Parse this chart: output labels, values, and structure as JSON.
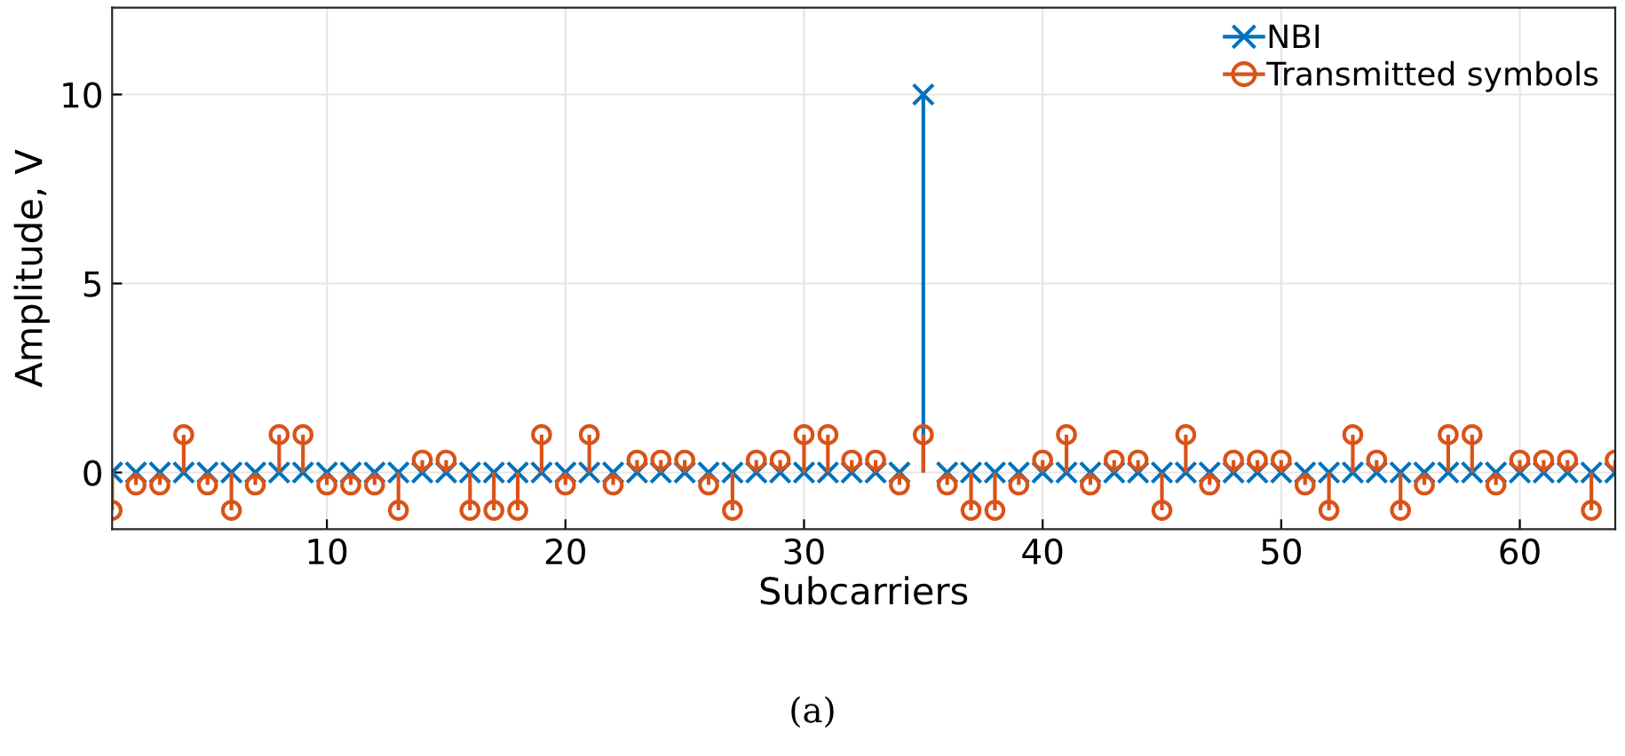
{
  "chart_data": {
    "type": "lollipop",
    "xlabel": "Subcarriers",
    "ylabel": "Amplitude, V",
    "x": [
      1,
      2,
      3,
      4,
      5,
      6,
      7,
      8,
      9,
      10,
      11,
      12,
      13,
      14,
      15,
      16,
      17,
      18,
      19,
      20,
      21,
      22,
      23,
      24,
      25,
      26,
      27,
      28,
      29,
      30,
      31,
      32,
      33,
      34,
      35,
      36,
      37,
      38,
      39,
      40,
      41,
      42,
      43,
      44,
      45,
      46,
      47,
      48,
      49,
      50,
      51,
      52,
      53,
      54,
      55,
      56,
      57,
      58,
      59,
      60,
      61,
      62,
      63,
      64
    ],
    "series": [
      {
        "name": "NBI",
        "color": "#0072bd",
        "marker": "cross",
        "values": [
          0,
          0,
          0,
          0,
          0,
          0,
          0,
          0,
          0,
          0,
          0,
          0,
          0,
          0,
          0,
          0,
          0,
          0,
          0,
          0,
          0,
          0,
          0,
          0,
          0,
          0,
          0,
          0,
          0,
          0,
          0,
          0,
          0,
          0,
          10,
          0,
          0,
          0,
          0,
          0,
          0,
          0,
          0,
          0,
          0,
          0,
          0,
          0,
          0,
          0,
          0,
          0,
          0,
          0,
          0,
          0,
          0,
          0,
          0,
          0,
          0,
          0,
          0,
          0
        ]
      },
      {
        "name": "Transmitted symbols",
        "color": "#d95319",
        "marker": "circle",
        "values": [
          -1,
          -0.33,
          -0.33,
          1,
          -0.33,
          -1,
          -0.33,
          1,
          1,
          -0.33,
          -0.33,
          -0.33,
          -1,
          0.33,
          0.33,
          -1,
          -1,
          -1,
          1,
          -0.33,
          1,
          -0.33,
          0.33,
          0.33,
          0.33,
          -0.33,
          -1,
          0.33,
          0.33,
          1,
          1,
          0.33,
          0.33,
          -0.33,
          1,
          -0.33,
          -1,
          -1,
          -0.33,
          0.33,
          1,
          -0.33,
          0.33,
          0.33,
          -1,
          1,
          -0.33,
          0.33,
          0.33,
          0.33,
          -0.33,
          -1,
          1,
          0.33,
          -1,
          -0.33,
          1,
          1,
          -0.33,
          0.33,
          0.33,
          0.33,
          -1,
          0.33
        ]
      }
    ],
    "xlim": [
      1,
      64
    ],
    "xticks": [
      10,
      20,
      30,
      40,
      50,
      60
    ],
    "ylim": [
      -1.5,
      12.3
    ],
    "yticks": [
      0,
      5,
      10
    ],
    "grid": true,
    "legend": "top right",
    "annotations": [
      "(a)"
    ]
  }
}
